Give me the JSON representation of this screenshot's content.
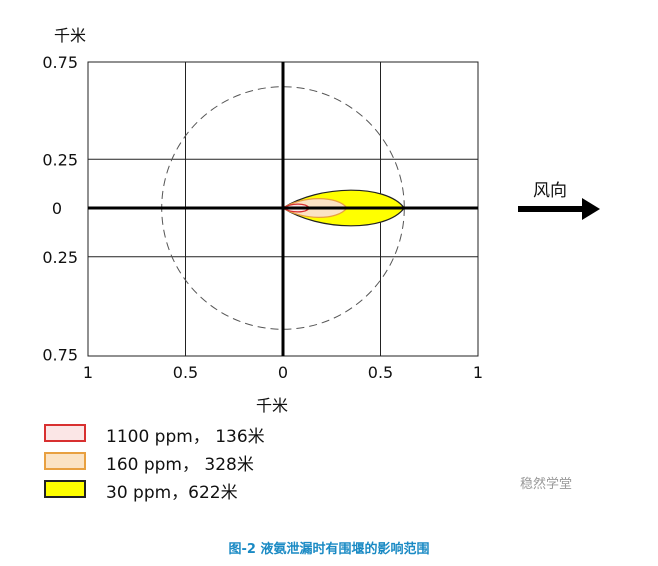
{
  "chart_data": {
    "type": "area",
    "unit_label_y": "千米",
    "unit_label_x": "千米",
    "x_ticks": [
      "1",
      "0.5",
      "0",
      "0.5",
      "1"
    ],
    "y_ticks": [
      "0.75",
      "0.25",
      "0",
      "0.25",
      "0.75"
    ],
    "xlim": [
      -1,
      1
    ],
    "ylim": [
      -0.75,
      0.75
    ],
    "grid": true,
    "circle_radius_km": 0.622,
    "plumes": [
      {
        "label": "30 ppm，622米",
        "range_km": 0.622,
        "fill": "#ffff00",
        "stroke": "#222222"
      },
      {
        "label": "160 ppm， 328米",
        "range_km": 0.328,
        "fill": "#fbe3c4",
        "stroke": "#e8a040"
      },
      {
        "label": "1100 ppm， 136米",
        "range_km": 0.136,
        "fill": "#fbe6e6",
        "stroke": "#d83030"
      }
    ]
  },
  "wind_label": "风向",
  "legend": [
    {
      "label": "1100 ppm， 136米",
      "fill": "#fbe6e6",
      "stroke": "#d83030"
    },
    {
      "label": "160 ppm， 328米",
      "fill": "#fbe3c4",
      "stroke": "#e8a040"
    },
    {
      "label": "30 ppm，622米",
      "fill": "#ffff00",
      "stroke": "#222222"
    }
  ],
  "watermark": "稳然学堂",
  "caption": "图-2 液氨泄漏时有围堰的影响范围"
}
